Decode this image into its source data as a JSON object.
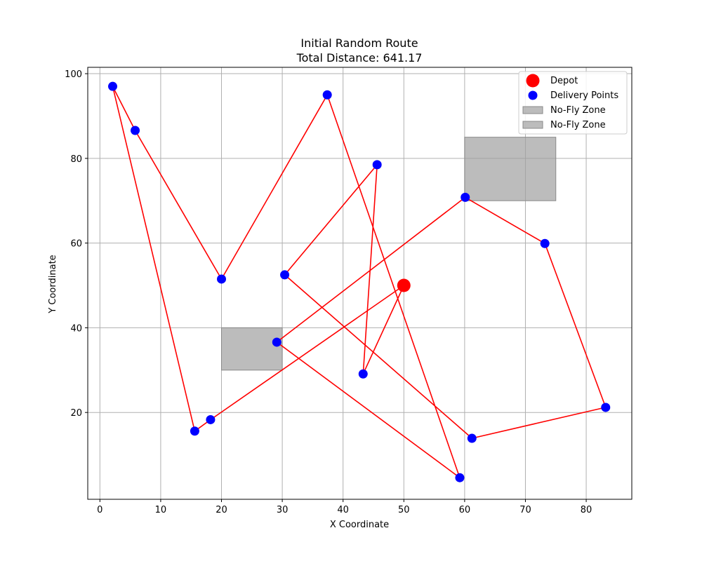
{
  "chart_data": {
    "type": "scatter",
    "title": "Initial Random Route",
    "subtitle": "Total Distance: 641.17",
    "xlabel": "X Coordinate",
    "ylabel": "Y Coordinate",
    "xlim": [
      -2,
      87.5
    ],
    "ylim": [
      -0.5,
      101.5
    ],
    "xticks": [
      0,
      10,
      20,
      30,
      40,
      50,
      60,
      70,
      80
    ],
    "yticks": [
      20,
      40,
      60,
      80,
      100
    ],
    "grid": true,
    "legend_position": "top-right",
    "depot": {
      "name": "Depot",
      "x": 50,
      "y": 50,
      "color": "#ff0000"
    },
    "delivery_points": {
      "name": "Delivery Points",
      "color": "#0000ff",
      "points": [
        {
          "x": 2.1,
          "y": 97.0
        },
        {
          "x": 5.8,
          "y": 86.6
        },
        {
          "x": 20.0,
          "y": 51.5
        },
        {
          "x": 37.4,
          "y": 95.0
        },
        {
          "x": 45.6,
          "y": 78.5
        },
        {
          "x": 30.4,
          "y": 52.5
        },
        {
          "x": 60.1,
          "y": 70.8
        },
        {
          "x": 73.2,
          "y": 59.9
        },
        {
          "x": 83.2,
          "y": 21.2
        },
        {
          "x": 61.2,
          "y": 13.9
        },
        {
          "x": 59.2,
          "y": 4.6
        },
        {
          "x": 43.3,
          "y": 29.1
        },
        {
          "x": 29.1,
          "y": 36.6
        },
        {
          "x": 18.2,
          "y": 18.3
        },
        {
          "x": 15.6,
          "y": 15.6
        }
      ]
    },
    "route": {
      "color": "#ff0000",
      "points": [
        [
          50,
          50
        ],
        [
          43.3,
          29.1
        ],
        [
          45.6,
          78.5
        ],
        [
          30.4,
          52.5
        ],
        [
          61.2,
          13.9
        ],
        [
          83.2,
          21.2
        ],
        [
          73.2,
          59.9
        ],
        [
          60.1,
          70.8
        ],
        [
          29.1,
          36.6
        ],
        [
          59.2,
          4.6
        ],
        [
          37.4,
          95.0
        ],
        [
          20.0,
          51.5
        ],
        [
          5.8,
          86.6
        ],
        [
          2.1,
          97.0
        ],
        [
          15.6,
          15.6
        ],
        [
          18.2,
          18.3
        ],
        [
          50,
          50
        ]
      ]
    },
    "no_fly_zones": [
      {
        "name": "No-Fly Zone",
        "x": [
          20,
          30
        ],
        "y": [
          30,
          40
        ],
        "color": "#a0a0a0"
      },
      {
        "name": "No-Fly Zone",
        "x": [
          60,
          75
        ],
        "y": [
          70,
          85
        ],
        "color": "#a0a0a0"
      }
    ]
  }
}
